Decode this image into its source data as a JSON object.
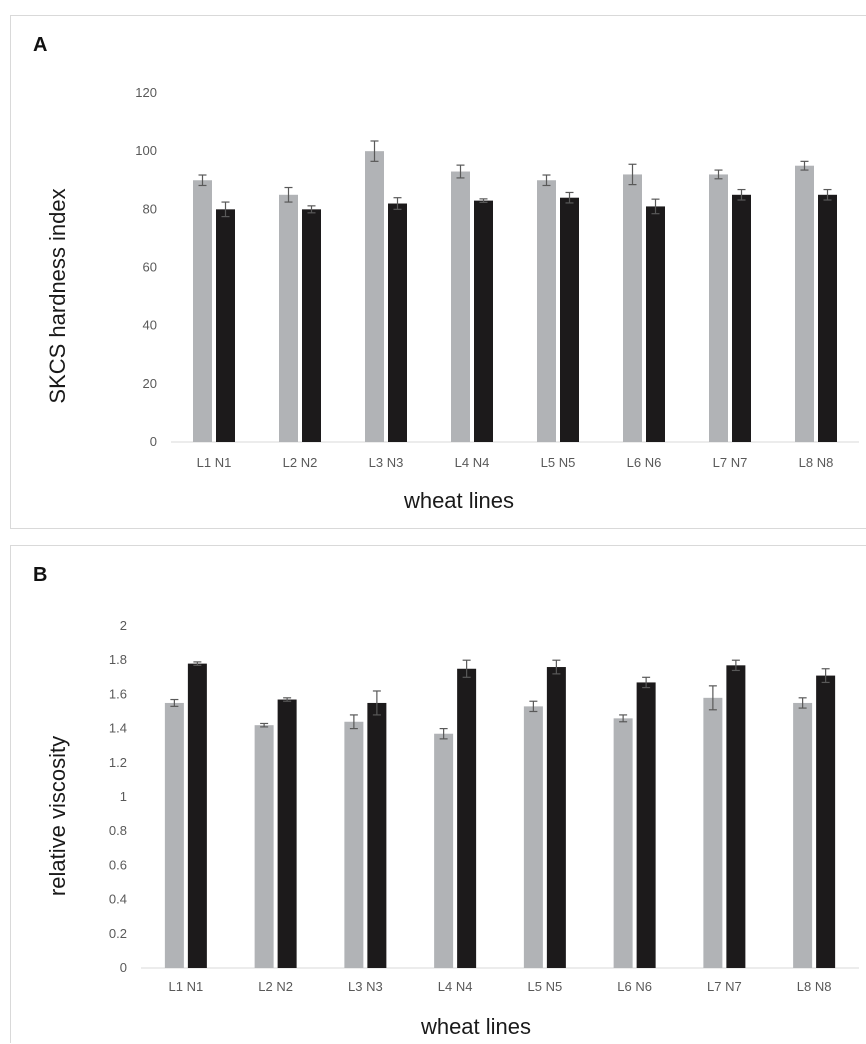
{
  "chart_data": [
    {
      "panel_label": "A",
      "type": "bar",
      "categories": [
        "L1 N1",
        "L2 N2",
        "L3 N3",
        "L4 N4",
        "L5 N5",
        "L6 N6",
        "L7 N7",
        "L8 N8"
      ],
      "series": [
        {
          "values": [
            90,
            85,
            100,
            93,
            90,
            92,
            92,
            95
          ],
          "errors": [
            1.8,
            2.5,
            3.5,
            2.2,
            1.8,
            3.5,
            1.5,
            1.5
          ],
          "color": "#b1b3b6"
        },
        {
          "values": [
            80,
            80,
            82,
            83,
            84,
            81,
            85,
            85
          ],
          "errors": [
            2.5,
            1.2,
            2.0,
            0.6,
            1.8,
            2.5,
            1.8,
            1.8
          ],
          "color": "#1c1a1b"
        }
      ],
      "xlabel": "wheat lines",
      "ylabel": "SKCS hardness index",
      "ylim": [
        0,
        120
      ],
      "yticks": [
        "0",
        "20",
        "40",
        "60",
        "80",
        "100",
        "120"
      ],
      "grid": false
    },
    {
      "panel_label": "B",
      "type": "bar",
      "categories": [
        "L1 N1",
        "L2 N2",
        "L3 N3",
        "L4 N4",
        "L5 N5",
        "L6 N6",
        "L7 N7",
        "L8 N8"
      ],
      "series": [
        {
          "values": [
            1.55,
            1.42,
            1.44,
            1.37,
            1.53,
            1.46,
            1.58,
            1.55
          ],
          "errors": [
            0.02,
            0.01,
            0.04,
            0.03,
            0.03,
            0.02,
            0.07,
            0.03
          ],
          "color": "#b1b3b6"
        },
        {
          "values": [
            1.78,
            1.57,
            1.55,
            1.75,
            1.76,
            1.67,
            1.77,
            1.71
          ],
          "errors": [
            0.01,
            0.01,
            0.07,
            0.05,
            0.04,
            0.03,
            0.03,
            0.04
          ],
          "color": "#1c1a1b"
        }
      ],
      "xlabel": "wheat lines",
      "ylabel": "relative viscosity",
      "ylim": [
        0,
        2
      ],
      "yticks": [
        "0",
        "0.2",
        "0.4",
        "0.6",
        "0.8",
        "1",
        "1.2",
        "1.4",
        "1.6",
        "1.8",
        "2"
      ],
      "grid": false
    }
  ],
  "colors": {
    "axis": "#d9d9d9",
    "error_bar": "#595959"
  }
}
